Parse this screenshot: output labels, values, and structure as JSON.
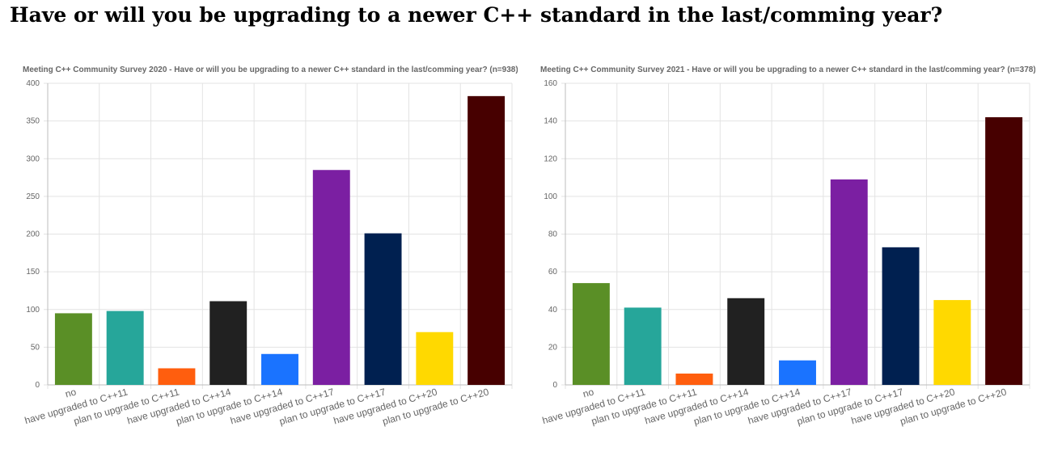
{
  "page_title": "Have or will you be upgrading to a newer C++ standard in the last/comming year?",
  "chart_data": [
    {
      "type": "bar",
      "title": "Meeting C++ Community Survey 2020 - Have or will you be upgrading to a newer C++ standard in the last/comming year? (n=938)",
      "categories": [
        "no",
        "have upgraded to C++11",
        "plan to upgrade to C++11",
        "have upgraded to C++14",
        "plan to upgrade to C++14",
        "have upgraded to C++17",
        "plan to upgrade to C++17",
        "have upgraded to C++20",
        "plan to upgrade to C++20"
      ],
      "values": [
        95,
        98,
        22,
        111,
        41,
        285,
        201,
        70,
        383
      ],
      "colors": [
        "#5a8f26",
        "#26a69a",
        "#ff5e0e",
        "#212121",
        "#1a73ff",
        "#7b1fa2",
        "#002050",
        "#ffd900",
        "#470000"
      ],
      "ylim": [
        0,
        400
      ],
      "yticks": [
        0,
        50,
        100,
        150,
        200,
        250,
        300,
        350,
        400
      ],
      "grid": true,
      "legend": "none"
    },
    {
      "type": "bar",
      "title": "Meeting C++ Community Survey 2021  - Have or will you be upgrading to a newer C++ standard in the last/comming year? (n=378)",
      "categories": [
        "no",
        "have upgraded to C++11",
        "plan to upgrade to C++11",
        "have upgraded to C++14",
        "plan to upgrade to C++14",
        "have upgraded to C++17",
        "plan to upgrade to C++17",
        "have upgraded to C++20",
        "plan to upgrade to C++20"
      ],
      "values": [
        54,
        41,
        6,
        46,
        13,
        109,
        73,
        45,
        142
      ],
      "colors": [
        "#5a8f26",
        "#26a69a",
        "#ff5e0e",
        "#212121",
        "#1a73ff",
        "#7b1fa2",
        "#002050",
        "#ffd900",
        "#470000"
      ],
      "ylim": [
        0,
        160
      ],
      "yticks": [
        0,
        20,
        40,
        60,
        80,
        100,
        120,
        140,
        160
      ],
      "grid": true,
      "legend": "none"
    }
  ]
}
